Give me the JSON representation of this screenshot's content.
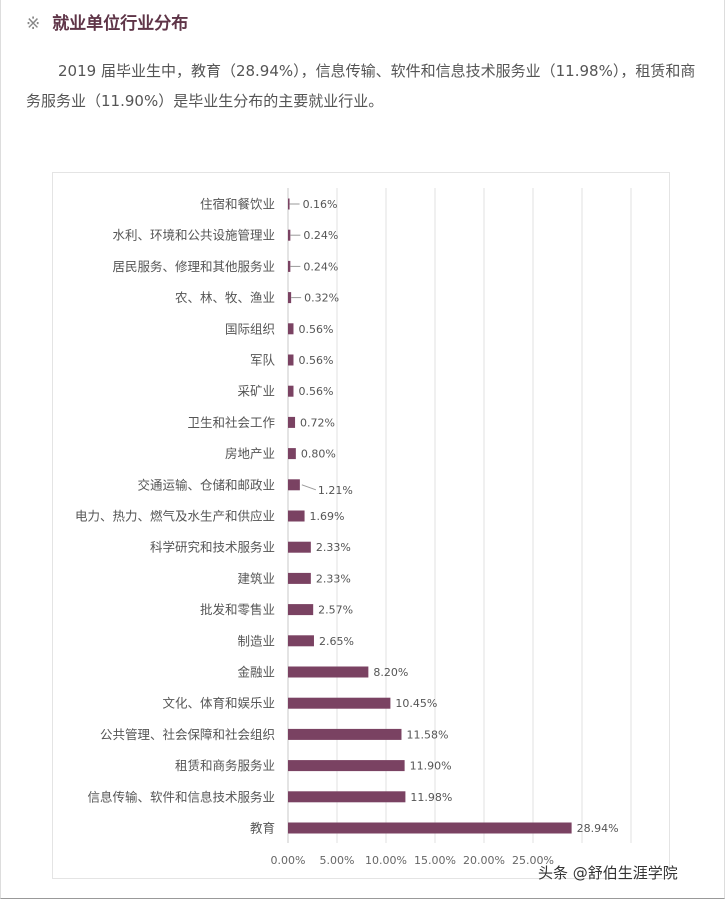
{
  "heading": {
    "symbol": "※",
    "title": "就业单位行业分布"
  },
  "paragraph": "2019 届毕业生中，教育（28.94%），信息传输、软件和信息技术服务业（11.98%），租赁和商务服务业（11.90%）是毕业生分布的主要就业行业。",
  "watermark": "头条 @舒伯生涯学院",
  "chart_data": {
    "type": "bar",
    "orientation": "horizontal",
    "categories": [
      "住宿和餐饮业",
      "水利、环境和公共设施管理业",
      "居民服务、修理和其他服务业",
      "农、林、牧、渔业",
      "国际组织",
      "军队",
      "采矿业",
      "卫生和社会工作",
      "房地产业",
      "交通运输、仓储和邮政业",
      "电力、热力、燃气及水生产和供应业",
      "科学研究和技术服务业",
      "建筑业",
      "批发和零售业",
      "制造业",
      "金融业",
      "文化、体育和娱乐业",
      "公共管理、社会保障和社会组织",
      "租赁和商务服务业",
      "信息传输、软件和信息技术服务业",
      "教育"
    ],
    "values": [
      0.16,
      0.24,
      0.24,
      0.32,
      0.56,
      0.56,
      0.56,
      0.72,
      0.8,
      1.21,
      1.69,
      2.33,
      2.33,
      2.57,
      2.65,
      8.2,
      10.45,
      11.58,
      11.9,
      11.98,
      28.94
    ],
    "data_labels": [
      "0.16%",
      "0.24%",
      "0.24%",
      "0.32%",
      "0.56%",
      "0.56%",
      "0.56%",
      "0.72%",
      "0.80%",
      "1.21%",
      "1.69%",
      "2.33%",
      "2.33%",
      "2.57%",
      "2.65%",
      "8.20%",
      "10.45%",
      "11.58%",
      "11.90%",
      "11.98%",
      "28.94%"
    ],
    "x_tick_labels": [
      "0.00%",
      "5.00%",
      "10.00%",
      "15.00%",
      "20.00%",
      "25.00%"
    ],
    "xlim": [
      0,
      35
    ],
    "grid": true,
    "bar_color": "#7a4262",
    "title": "",
    "xlabel": "",
    "ylabel": ""
  }
}
